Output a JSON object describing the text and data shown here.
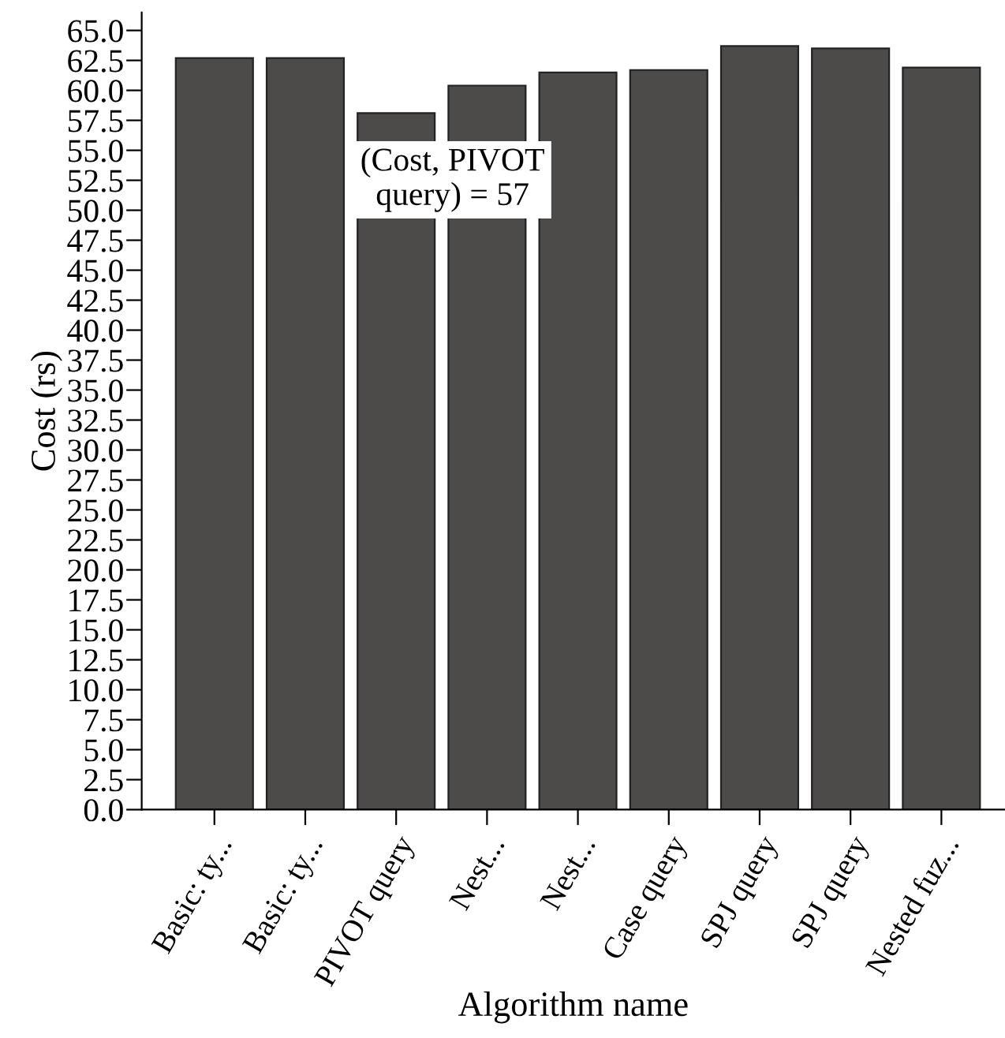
{
  "chart_data": {
    "type": "bar",
    "xlabel": "Algorithm name",
    "ylabel": "Cost (rs)",
    "categories": [
      "Basic: ty...",
      "Basic: ty...",
      "PIVOT query",
      "Nest...",
      "Nest...",
      "Case query",
      "SPJ query",
      "SPJ query",
      "Nested fuz..."
    ],
    "values": [
      62.7,
      62.7,
      58.1,
      60.4,
      61.5,
      61.7,
      63.7,
      63.5,
      61.9
    ],
    "color": "#4d4a4a",
    "ylim": [
      0,
      66.5
    ],
    "yticks": [
      {
        "value": 0,
        "label": "0.0"
      },
      {
        "value": 2.5,
        "label": "2.5"
      },
      {
        "value": 5,
        "label": "5.0"
      },
      {
        "value": 7.5,
        "label": "7.5"
      },
      {
        "value": 10,
        "label": "10.0"
      },
      {
        "value": 12.5,
        "label": "12.5"
      },
      {
        "value": 15,
        "label": "15.0"
      },
      {
        "value": 17.5,
        "label": "17.5"
      },
      {
        "value": 20,
        "label": "20.0"
      },
      {
        "value": 22.5,
        "label": "22.5"
      },
      {
        "value": 25,
        "label": "25.0"
      },
      {
        "value": 27.5,
        "label": "27.5"
      },
      {
        "value": 30,
        "label": "30.0"
      },
      {
        "value": 32.5,
        "label": "32.5"
      },
      {
        "value": 35,
        "label": "35.0"
      },
      {
        "value": 37.5,
        "label": "37.5"
      },
      {
        "value": 40,
        "label": "40.0"
      },
      {
        "value": 42.5,
        "label": "42.5"
      },
      {
        "value": 45,
        "label": "45.0"
      },
      {
        "value": 47.5,
        "label": "47.5"
      },
      {
        "value": 50,
        "label": "50.0"
      },
      {
        "value": 52.5,
        "label": "52.5"
      },
      {
        "value": 55,
        "label": "55.0"
      },
      {
        "value": 57.5,
        "label": "57.5"
      },
      {
        "value": 60,
        "label": "60.0"
      },
      {
        "value": 62.5,
        "label": "62.5"
      },
      {
        "value": 65,
        "label": "65.0"
      }
    ],
    "annotations": [
      "(Cost, PIVOT\nquery) = 57"
    ],
    "grid": false,
    "legend": false
  }
}
